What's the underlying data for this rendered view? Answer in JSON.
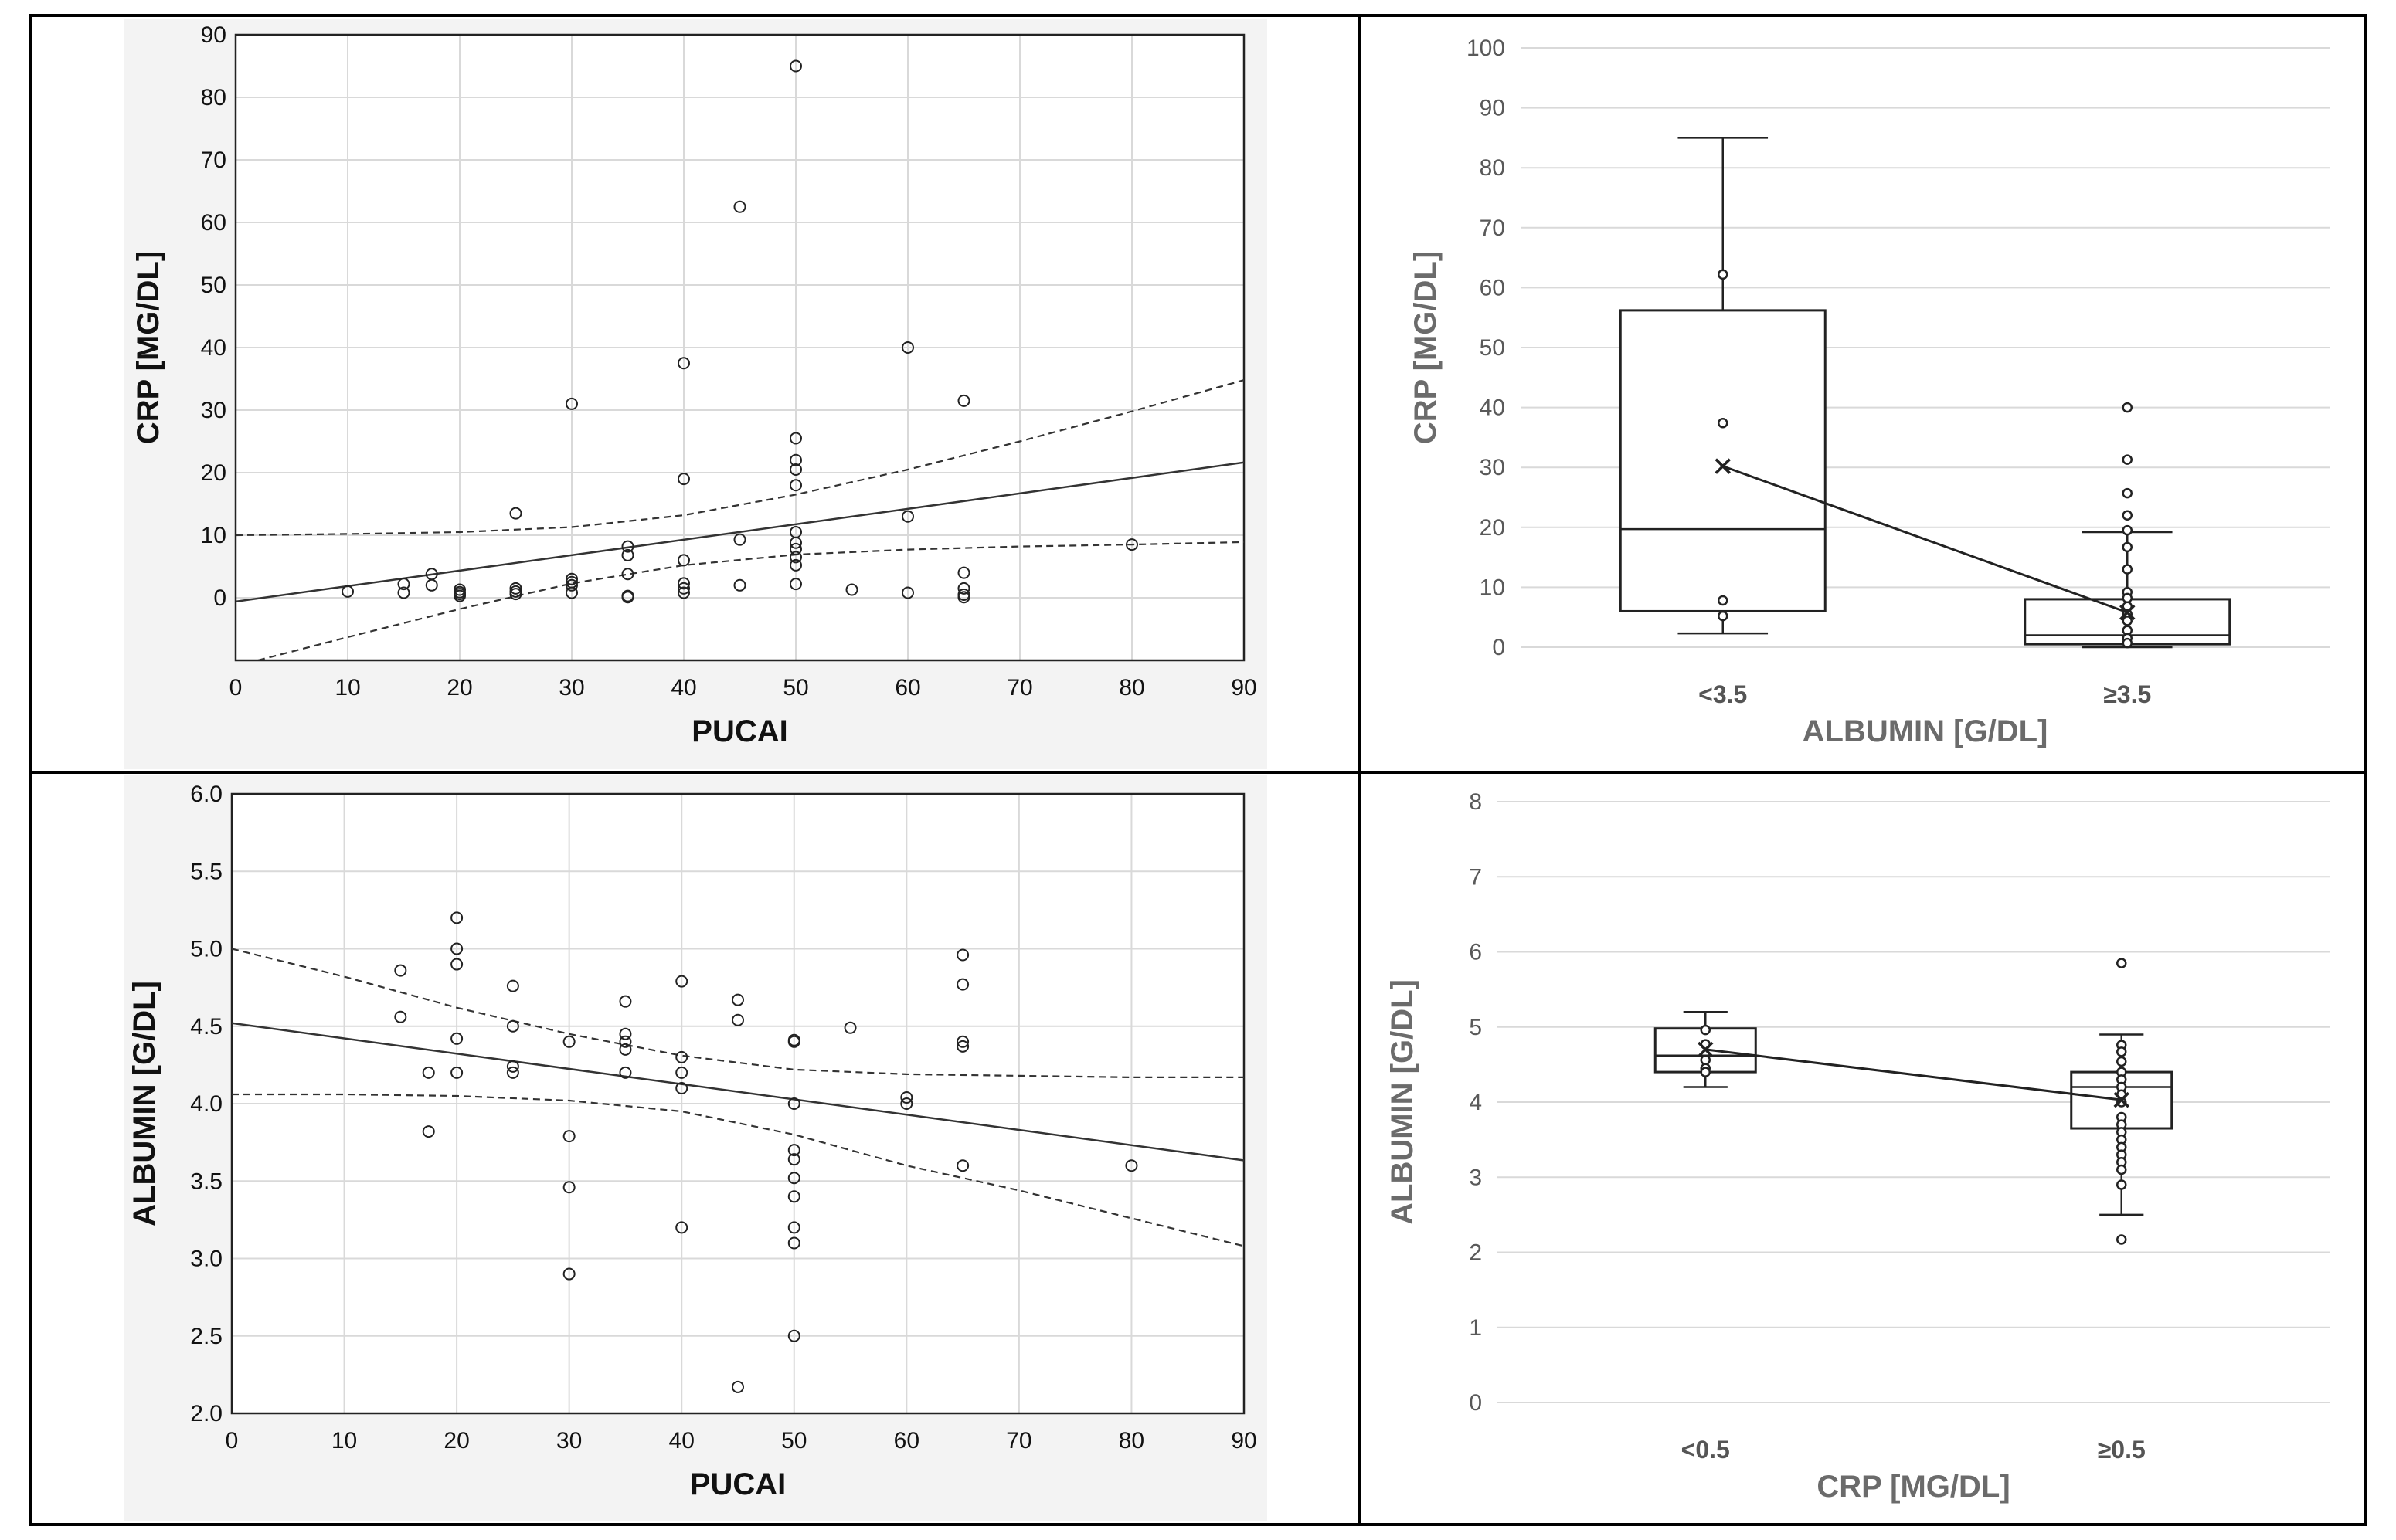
{
  "chart_data": [
    {
      "type": "scatter",
      "xlabel": "PUCAI",
      "ylabel": "CRP [MG/DL]",
      "xlim": [
        0,
        90
      ],
      "ylim": [
        -10,
        90
      ],
      "xticks": [
        "0",
        "10",
        "20",
        "30",
        "40",
        "50",
        "60",
        "70",
        "80",
        "90"
      ],
      "yticks": [
        "0",
        "10",
        "20",
        "30",
        "40",
        "50",
        "60",
        "70",
        "80",
        "90"
      ],
      "grid": true,
      "points": [
        [
          10,
          1.0
        ],
        [
          15,
          2.2
        ],
        [
          15,
          0.8
        ],
        [
          17.5,
          3.8
        ],
        [
          17.5,
          2.0
        ],
        [
          20,
          1.3
        ],
        [
          20,
          0.9
        ],
        [
          20,
          0.6
        ],
        [
          20,
          0.3
        ],
        [
          25,
          13.5
        ],
        [
          25,
          1.5
        ],
        [
          25,
          1.0
        ],
        [
          25,
          0.6
        ],
        [
          30,
          31
        ],
        [
          30,
          3.0
        ],
        [
          30,
          2.5
        ],
        [
          30,
          2.0
        ],
        [
          30,
          0.8
        ],
        [
          35,
          8.2
        ],
        [
          35,
          6.8
        ],
        [
          35,
          3.8
        ],
        [
          35,
          0.3
        ],
        [
          35,
          0.1
        ],
        [
          40,
          37.5
        ],
        [
          40,
          19
        ],
        [
          40,
          6.0
        ],
        [
          40,
          2.3
        ],
        [
          40,
          1.5
        ],
        [
          40,
          0.8
        ],
        [
          45,
          62.5
        ],
        [
          45,
          9.3
        ],
        [
          45,
          2.0
        ],
        [
          50,
          85
        ],
        [
          50,
          25.5
        ],
        [
          50,
          22
        ],
        [
          50,
          20.5
        ],
        [
          50,
          18
        ],
        [
          50,
          10.5
        ],
        [
          50,
          8.8
        ],
        [
          50,
          7.8
        ],
        [
          50,
          6.5
        ],
        [
          50,
          5.2
        ],
        [
          50,
          2.2
        ],
        [
          55,
          1.3
        ],
        [
          60,
          40
        ],
        [
          60,
          13
        ],
        [
          60,
          0.8
        ],
        [
          65,
          31.5
        ],
        [
          65,
          4.0
        ],
        [
          65,
          1.5
        ],
        [
          65,
          0.5
        ],
        [
          65,
          0.1
        ],
        [
          80,
          8.5
        ]
      ],
      "regression": {
        "intercept": -0.6,
        "slope": 0.247
      },
      "ci_upper": [
        [
          0,
          10
        ],
        [
          10,
          10.2
        ],
        [
          20,
          10.5
        ],
        [
          30,
          11.3
        ],
        [
          40,
          13.2
        ],
        [
          50,
          16.5
        ],
        [
          60,
          20.5
        ],
        [
          70,
          25
        ],
        [
          80,
          29.8
        ],
        [
          90,
          34.8
        ]
      ],
      "ci_lower": [
        [
          2,
          -10
        ],
        [
          10,
          -6.3
        ],
        [
          20,
          -1.8
        ],
        [
          30,
          2.3
        ],
        [
          40,
          5.2
        ],
        [
          50,
          6.9
        ],
        [
          60,
          7.7
        ],
        [
          70,
          8.2
        ],
        [
          80,
          8.5
        ],
        [
          90,
          8.9
        ]
      ]
    },
    {
      "type": "box",
      "xlabel": "ALBUMIN  [G/DL]",
      "ylabel": "CRP [MG/DL]",
      "ylim": [
        0,
        100
      ],
      "yticks": [
        "0",
        "10",
        "20",
        "30",
        "40",
        "50",
        "60",
        "70",
        "80",
        "90",
        "100"
      ],
      "categories": [
        "<3.5",
        "≥3.5"
      ],
      "boxes": [
        {
          "min": 2.3,
          "q1": 6.0,
          "median": 19.7,
          "q3": 56.2,
          "max": 85.0,
          "mean": 30.2,
          "outliers": [
            62.2,
            37.4,
            7.8,
            5.2
          ]
        },
        {
          "min": 0,
          "q1": 0.5,
          "median": 2.0,
          "q3": 8.0,
          "max": 19.2,
          "mean": 5.8,
          "outliers": [
            40,
            31.3,
            25.7,
            22,
            19.5,
            16.7,
            13,
            9.2,
            8.2,
            6.8,
            5.5,
            4.4,
            2.8,
            1.5,
            0.7
          ]
        }
      ],
      "mean_line": true
    },
    {
      "type": "scatter",
      "xlabel": "PUCAI",
      "ylabel": "ALBUMIN [G/DL]",
      "xlim": [
        0,
        90
      ],
      "ylim": [
        2.0,
        6.0
      ],
      "xticks": [
        "0",
        "10",
        "20",
        "30",
        "40",
        "50",
        "60",
        "70",
        "80",
        "90"
      ],
      "yticks": [
        "2.0",
        "2.5",
        "3.0",
        "3.5",
        "4.0",
        "4.5",
        "5.0",
        "5.5",
        "6.0"
      ],
      "grid": true,
      "points": [
        [
          15,
          4.86
        ],
        [
          15,
          4.56
        ],
        [
          17.5,
          4.2
        ],
        [
          17.5,
          3.82
        ],
        [
          20,
          5.2
        ],
        [
          20,
          5.0
        ],
        [
          20,
          4.9
        ],
        [
          20,
          4.42
        ],
        [
          20,
          4.2
        ],
        [
          25,
          4.76
        ],
        [
          25,
          4.5
        ],
        [
          25,
          4.24
        ],
        [
          25,
          4.2
        ],
        [
          30,
          4.4
        ],
        [
          30,
          3.79
        ],
        [
          30,
          3.46
        ],
        [
          30,
          2.9
        ],
        [
          35,
          4.66
        ],
        [
          35,
          4.45
        ],
        [
          35,
          4.4
        ],
        [
          35,
          4.35
        ],
        [
          35,
          4.2
        ],
        [
          40,
          4.79
        ],
        [
          40,
          4.3
        ],
        [
          40,
          4.2
        ],
        [
          40,
          4.1
        ],
        [
          40,
          3.2
        ],
        [
          45,
          4.67
        ],
        [
          45,
          4.54
        ],
        [
          45,
          2.17
        ],
        [
          50,
          4.41
        ],
        [
          50,
          4.4
        ],
        [
          50,
          4.0
        ],
        [
          50,
          3.7
        ],
        [
          50,
          3.64
        ],
        [
          50,
          3.52
        ],
        [
          50,
          3.4
        ],
        [
          50,
          3.2
        ],
        [
          50,
          3.1
        ],
        [
          50,
          2.5
        ],
        [
          55,
          4.49
        ],
        [
          60,
          4.04
        ],
        [
          60,
          4.0
        ],
        [
          65,
          4.96
        ],
        [
          65,
          4.77
        ],
        [
          65,
          4.4
        ],
        [
          65,
          4.37
        ],
        [
          65,
          3.6
        ],
        [
          80,
          3.6
        ]
      ],
      "regression": {
        "intercept": 4.52,
        "slope": -0.00985
      },
      "ci_upper": [
        [
          0,
          5.0
        ],
        [
          10,
          4.82
        ],
        [
          20,
          4.62
        ],
        [
          30,
          4.45
        ],
        [
          40,
          4.31
        ],
        [
          50,
          4.22
        ],
        [
          60,
          4.19
        ],
        [
          70,
          4.18
        ],
        [
          80,
          4.17
        ],
        [
          90,
          4.17
        ]
      ],
      "ci_lower": [
        [
          0,
          4.06
        ],
        [
          10,
          4.06
        ],
        [
          20,
          4.05
        ],
        [
          30,
          4.02
        ],
        [
          40,
          3.95
        ],
        [
          50,
          3.8
        ],
        [
          60,
          3.6
        ],
        [
          70,
          3.44
        ],
        [
          80,
          3.26
        ],
        [
          90,
          3.08
        ]
      ]
    },
    {
      "type": "box",
      "xlabel": "CRP [MG/DL]",
      "ylabel": "ALBUMIN [G/DL]",
      "ylim": [
        0,
        8
      ],
      "yticks": [
        "0",
        "1",
        "2",
        "3",
        "4",
        "5",
        "6",
        "7",
        "8"
      ],
      "categories": [
        "<0.5",
        "≥0.5"
      ],
      "boxes": [
        {
          "min": 4.2,
          "q1": 4.4,
          "median": 4.62,
          "q3": 4.98,
          "max": 5.2,
          "mean": 4.7,
          "outliers": [
            4.96,
            4.77,
            4.56,
            4.45,
            4.4
          ]
        },
        {
          "min": 2.5,
          "q1": 3.65,
          "median": 4.2,
          "q3": 4.4,
          "max": 4.9,
          "mean": 4.03,
          "outliers": [
            5.85,
            4.76,
            4.67,
            4.54,
            4.4,
            4.3,
            4.2,
            4.1,
            4.0,
            3.8,
            3.7,
            3.6,
            3.5,
            3.4,
            3.3,
            3.2,
            3.1,
            2.9,
            2.17
          ]
        }
      ],
      "mean_line": true
    }
  ]
}
